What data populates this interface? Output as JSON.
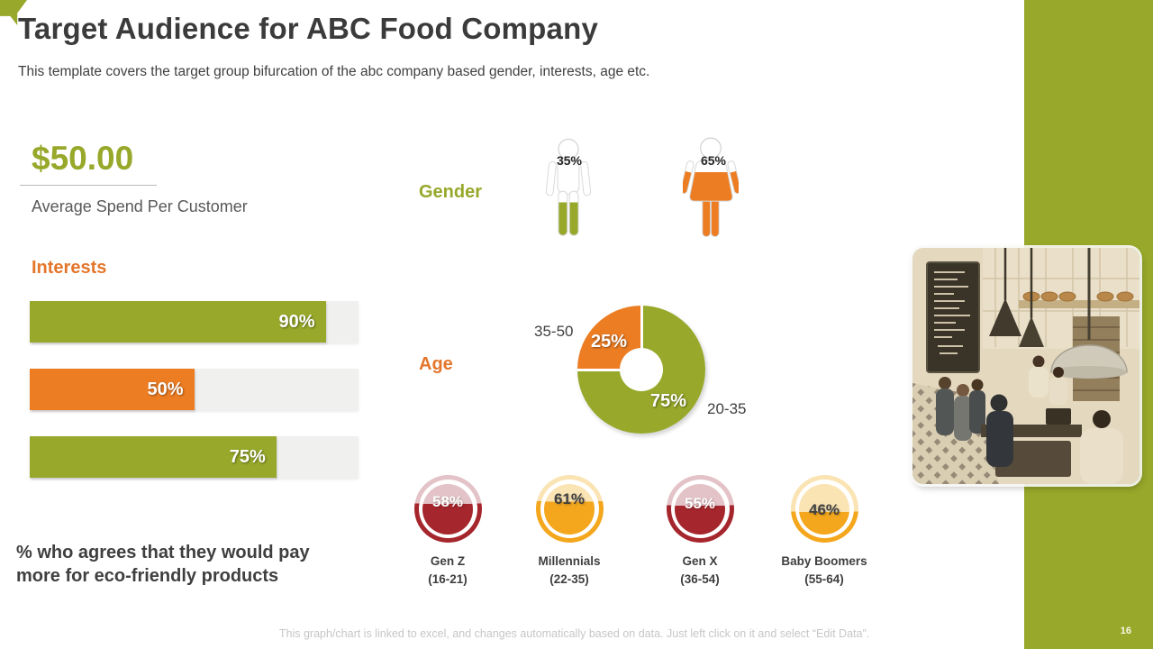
{
  "slide": {
    "title": "Target Audience for ABC Food Company",
    "subtitle": "This template covers the target group bifurcation of the abc company based gender, interests, age etc.",
    "footer_note": "This graph/chart is linked to excel, and changes automatically based on data. Just left click on it and select “Edit Data”.",
    "page_number": "16"
  },
  "colors": {
    "green": "#97A82A",
    "orange": "#ED7D23",
    "dark_red": "#A5262C",
    "red_tint": "#E3C3C7",
    "amber": "#F4A71D",
    "amber_tint": "#FBE4B4",
    "bar_track": "#F0F0EF",
    "text_dark": "#3F3F3F",
    "text_gray": "#595959",
    "footer_gray": "#C6C6C6"
  },
  "kpi": {
    "value": "$50.00",
    "label": "Average Spend Per Customer"
  },
  "interests": {
    "heading": "Interests",
    "bars": [
      {
        "label": "90%",
        "value": 90,
        "color": "#97A82A"
      },
      {
        "label": "50%",
        "value": 50,
        "color": "#ED7D23"
      },
      {
        "label": "75%",
        "value": 75,
        "color": "#97A82A"
      }
    ],
    "note": "% who agrees that they would pay more for eco-friendly products"
  },
  "gender": {
    "heading": "Gender",
    "male": {
      "label": "35%",
      "value": 35,
      "color": "#97A82A"
    },
    "female": {
      "label": "65%",
      "value": 65,
      "color": "#ED7D23"
    }
  },
  "age": {
    "heading": "Age",
    "slices": [
      {
        "range": "20-35",
        "label": "75%",
        "value": 75,
        "color": "#97A82A"
      },
      {
        "range": "35-50",
        "label": "25%",
        "value": 25,
        "color": "#ED7D23"
      }
    ]
  },
  "generations": [
    {
      "name": "Gen Z",
      "range": "(16-21)",
      "label": "58%",
      "value": 58,
      "fill": "#A5262C",
      "tint": "#E3C3C7",
      "value_color": "#FFFFFF"
    },
    {
      "name": "Millennials",
      "range": "(22-35)",
      "label": "61%",
      "value": 61,
      "fill": "#F4A71D",
      "tint": "#FBE4B4",
      "value_color": "#3F3F3F"
    },
    {
      "name": "Gen X",
      "range": "(36-54)",
      "label": "55%",
      "value": 55,
      "fill": "#A5262C",
      "tint": "#E3C3C7",
      "value_color": "#FFFFFF"
    },
    {
      "name": "Baby Boomers",
      "range": "(55-64)",
      "label": "46%",
      "value": 46,
      "fill": "#F4A71D",
      "tint": "#FBE4B4",
      "value_color": "#3F3F3F"
    }
  ],
  "chart_data": [
    {
      "type": "bar",
      "title": "Interests",
      "orientation": "horizontal",
      "values": [
        90,
        50,
        75
      ],
      "unit": "%",
      "bar_colors": [
        "#97A82A",
        "#ED7D23",
        "#97A82A"
      ],
      "xlim": [
        0,
        100
      ],
      "annotation": "% who agrees that they would pay more for eco-friendly products"
    },
    {
      "type": "pictograph",
      "title": "Gender",
      "categories": [
        "male",
        "female"
      ],
      "values": [
        35,
        65
      ],
      "unit": "%",
      "colors": [
        "#97A82A",
        "#ED7D23"
      ]
    },
    {
      "type": "pie",
      "subtype": "donut",
      "title": "Age",
      "labels": [
        "20-35",
        "35-50"
      ],
      "values": [
        75,
        25
      ],
      "unit": "%",
      "colors": [
        "#97A82A",
        "#ED7D23"
      ]
    },
    {
      "type": "gauge",
      "title": "",
      "categories": [
        "Gen Z (16-21)",
        "Millennials (22-35)",
        "Gen X (36-54)",
        "Baby Boomers (55-64)"
      ],
      "values": [
        58,
        61,
        55,
        46
      ],
      "unit": "%",
      "colors": [
        "#A5262C",
        "#F4A71D",
        "#A5262C",
        "#F4A71D"
      ]
    }
  ]
}
